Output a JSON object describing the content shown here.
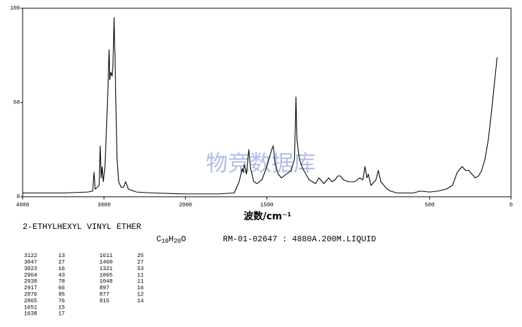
{
  "chart_data": {
    "type": "line",
    "xlabel": "波数/cm⁻¹",
    "xlim": [
      4000,
      0
    ],
    "x_scale_change_at": 2000,
    "x_scale_ratio_below": 2,
    "xticks": [
      4000,
      3000,
      2000,
      1500,
      500,
      0
    ],
    "ylim": [
      0,
      100
    ],
    "yticks": [
      0,
      50,
      100
    ],
    "color": "#000000",
    "x": [
      4000,
      3500,
      3200,
      3140,
      3122,
      3110,
      3060,
      3047,
      3035,
      3023,
      3010,
      2990,
      2975,
      2964,
      2950,
      2938,
      2930,
      2917,
      2900,
      2890,
      2876,
      2870,
      2865,
      2855,
      2840,
      2820,
      2790,
      2760,
      2735,
      2700,
      2600,
      2400,
      2000,
      1800,
      1700,
      1670,
      1651,
      1645,
      1638,
      1625,
      1611,
      1600,
      1580,
      1560,
      1530,
      1500,
      1470,
      1460,
      1450,
      1430,
      1410,
      1380,
      1350,
      1330,
      1321,
      1315,
      1300,
      1280,
      1260,
      1240,
      1200,
      1180,
      1150,
      1120,
      1100,
      1080,
      1065,
      1048,
      1030,
      1000,
      960,
      930,
      910,
      897,
      885,
      877,
      860,
      830,
      815,
      800,
      780,
      760,
      740,
      700,
      600,
      560,
      500,
      450,
      400,
      360,
      330,
      300,
      280,
      260,
      240,
      220,
      200,
      180,
      160,
      140,
      120,
      100,
      90,
      85
    ],
    "values": [
      2,
      2,
      2.5,
      3,
      13,
      4,
      6,
      27,
      10,
      16,
      8,
      15,
      30,
      43,
      60,
      78,
      62,
      66,
      64,
      70,
      95,
      80,
      76,
      50,
      20,
      8,
      5,
      5,
      8,
      4,
      2.5,
      2,
      1.5,
      1.5,
      2,
      8,
      15,
      13,
      17,
      12,
      25,
      15,
      8,
      7,
      9,
      16,
      25,
      27,
      18,
      12,
      10,
      12,
      14,
      20,
      53,
      30,
      20,
      15,
      12,
      9,
      7,
      10,
      7,
      10,
      8,
      9,
      11,
      11,
      9,
      8,
      8,
      10,
      9,
      16,
      10,
      12,
      6,
      9,
      14,
      8,
      6,
      4,
      3,
      2,
      2,
      3,
      2.5,
      3,
      4,
      6,
      13,
      16,
      14,
      14,
      12,
      10,
      11,
      14,
      20,
      30,
      45,
      62,
      70,
      74
    ]
  },
  "compound": "2-ETHYLHEXYL VINYL ETHER",
  "formula": [
    "C",
    "10",
    "H",
    "20",
    "O"
  ],
  "sample": "RM-01-02647 : 4880A.200M.LIQUID",
  "watermark": "物竞数据库",
  "peak_table": [
    [
      [
        3122,
        13
      ],
      [
        3047,
        27
      ],
      [
        3023,
        16
      ],
      [
        2964,
        43
      ],
      [
        2938,
        78
      ],
      [
        2917,
        66
      ],
      [
        2876,
        95
      ],
      [
        2865,
        76
      ],
      [
        1651,
        15
      ],
      [
        1638,
        17
      ]
    ],
    [
      [
        1611,
        25
      ],
      [
        1460,
        27
      ],
      [
        1321,
        53
      ],
      [
        1065,
        11
      ],
      [
        1048,
        11
      ],
      [
        897,
        16
      ],
      [
        877,
        12
      ],
      [
        815,
        14
      ]
    ]
  ]
}
